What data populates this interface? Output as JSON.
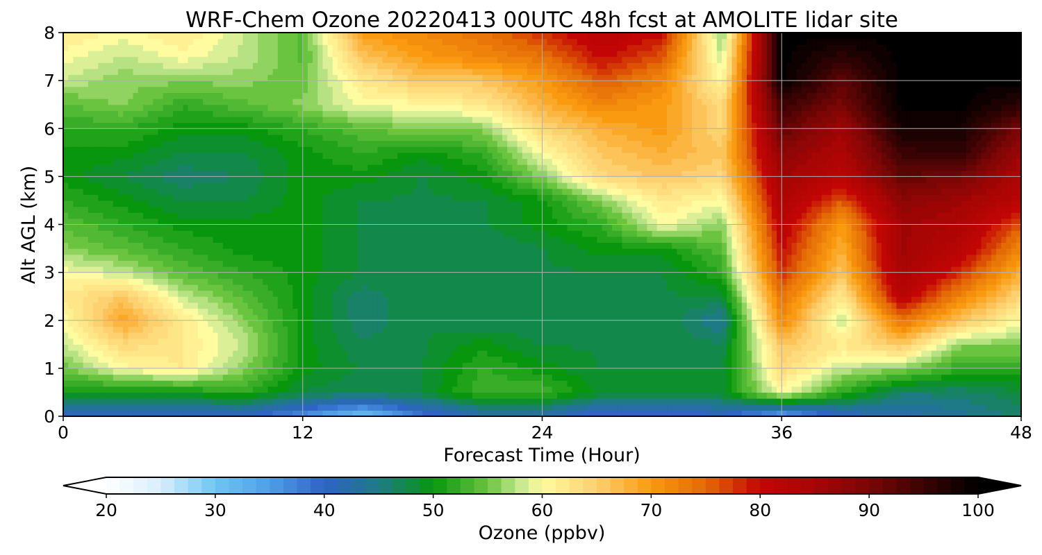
{
  "chart_data": {
    "type": "heatmap",
    "title": "WRF-Chem Ozone  20220413 00UTC 48h fcst at AMOLITE lidar site",
    "xlabel": "Forecast Time (Hour)",
    "ylabel": "Alt AGL (km)",
    "xlim": [
      0,
      48
    ],
    "ylim": [
      0,
      8
    ],
    "xticks": [
      "0",
      "12",
      "24",
      "36",
      "48"
    ],
    "yticks": [
      "0",
      "1",
      "2",
      "3",
      "4",
      "5",
      "6",
      "7",
      "8"
    ],
    "grid": true,
    "colorbar": {
      "label": "Ozone  (ppbv)",
      "range": [
        20,
        100
      ],
      "ticks": [
        "20",
        "30",
        "40",
        "50",
        "60",
        "70",
        "80",
        "90",
        "100"
      ],
      "extend": "both"
    },
    "x_hours": [
      0,
      3,
      6,
      9,
      12,
      15,
      18,
      21,
      24,
      27,
      30,
      33,
      36,
      39,
      42,
      45,
      48
    ],
    "y_km": [
      0,
      0.5,
      1,
      1.5,
      2,
      2.5,
      3,
      3.5,
      4,
      4.5,
      5,
      5.5,
      6,
      6.5,
      7,
      7.5,
      8
    ],
    "z_ppbv": [
      [
        40,
        40,
        40,
        40,
        36,
        30,
        38,
        42,
        42,
        38,
        38,
        40,
        33,
        40,
        42,
        44,
        46
      ],
      [
        50,
        50,
        50,
        52,
        48,
        47,
        48,
        53,
        53,
        49,
        49,
        49,
        60,
        52,
        46,
        46,
        48
      ],
      [
        55,
        60,
        62,
        56,
        50,
        48,
        48,
        52,
        50,
        48,
        48,
        48,
        64,
        58,
        56,
        52,
        52
      ],
      [
        58,
        64,
        62,
        58,
        50,
        47,
        48,
        50,
        48,
        48,
        48,
        47,
        66,
        62,
        66,
        56,
        56
      ],
      [
        60,
        69,
        62,
        56,
        50,
        46,
        48,
        47,
        47,
        48,
        48,
        44,
        72,
        58,
        74,
        66,
        60
      ],
      [
        62,
        66,
        58,
        54,
        50,
        46,
        48,
        47,
        47,
        48,
        48,
        48,
        74,
        62,
        82,
        72,
        64
      ],
      [
        60,
        58,
        54,
        52,
        50,
        48,
        48,
        47,
        48,
        48,
        48,
        52,
        78,
        66,
        85,
        78,
        68
      ],
      [
        56,
        54,
        52,
        50,
        50,
        48,
        48,
        47,
        48,
        50,
        50,
        54,
        80,
        68,
        86,
        82,
        72
      ],
      [
        54,
        52,
        50,
        50,
        50,
        48,
        48,
        48,
        50,
        52,
        60,
        56,
        82,
        70,
        86,
        84,
        76
      ],
      [
        52,
        50,
        48,
        48,
        50,
        48,
        48,
        48,
        50,
        56,
        62,
        60,
        84,
        76,
        88,
        86,
        82
      ],
      [
        50,
        48,
        46,
        47,
        50,
        50,
        48,
        50,
        56,
        64,
        66,
        64,
        86,
        82,
        92,
        90,
        84
      ],
      [
        50,
        50,
        48,
        48,
        50,
        52,
        50,
        52,
        60,
        66,
        68,
        66,
        88,
        84,
        95,
        96,
        86
      ],
      [
        52,
        52,
        50,
        50,
        52,
        54,
        56,
        56,
        64,
        68,
        70,
        64,
        92,
        86,
        98,
        98,
        90
      ],
      [
        54,
        56,
        52,
        54,
        56,
        60,
        60,
        62,
        68,
        72,
        70,
        64,
        95,
        90,
        100,
        100,
        96
      ],
      [
        58,
        56,
        56,
        56,
        55,
        62,
        66,
        66,
        70,
        76,
        72,
        60,
        100,
        92,
        100,
        100,
        100
      ],
      [
        60,
        58,
        60,
        58,
        54,
        66,
        70,
        72,
        74,
        80,
        76,
        58,
        100,
        96,
        100,
        100,
        100
      ],
      [
        62,
        60,
        62,
        58,
        54,
        70,
        72,
        74,
        78,
        82,
        80,
        56,
        100,
        100,
        100,
        100,
        100
      ]
    ]
  }
}
